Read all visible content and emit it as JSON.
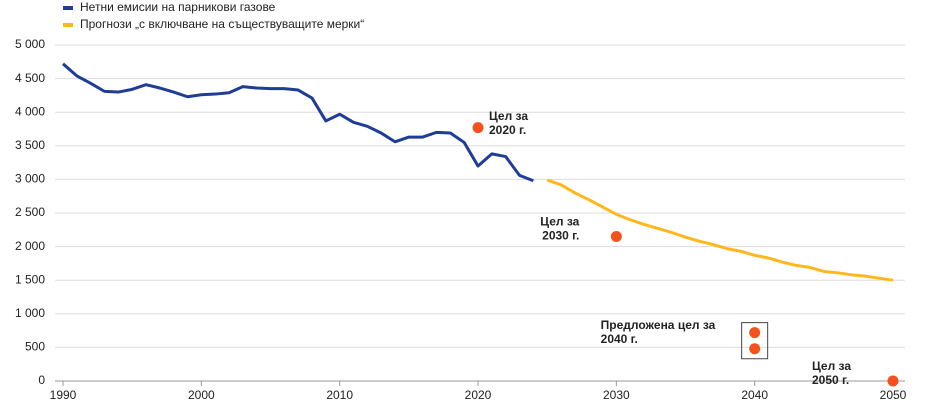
{
  "chart_data": {
    "type": "line",
    "x": [
      1990,
      1991,
      1992,
      1993,
      1994,
      1995,
      1996,
      1997,
      1998,
      1999,
      2000,
      2001,
      2002,
      2003,
      2004,
      2005,
      2006,
      2007,
      2008,
      2009,
      2010,
      2011,
      2012,
      2013,
      2014,
      2015,
      2016,
      2017,
      2018,
      2019,
      2020,
      2021,
      2022,
      2023,
      2024,
      2025,
      2026,
      2027,
      2028,
      2029,
      2030,
      2031,
      2032,
      2033,
      2034,
      2035,
      2036,
      2037,
      2038,
      2039,
      2040,
      2041,
      2042,
      2043,
      2044,
      2045,
      2046,
      2047,
      2048,
      2049,
      2050
    ],
    "series": [
      {
        "name": "Нетни емисии на парникови газове",
        "color": "#1f3c98",
        "values": [
          4720,
          4540,
          4430,
          4310,
          4300,
          4340,
          4410,
          4360,
          4300,
          4230,
          4260,
          4270,
          4290,
          4380,
          4360,
          4350,
          4350,
          4330,
          4210,
          3870,
          3970,
          3850,
          3790,
          3690,
          3560,
          3630,
          3630,
          3700,
          3690,
          3550,
          3200,
          3380,
          3340,
          3060,
          2980,
          null,
          null,
          null,
          null,
          null,
          null,
          null,
          null,
          null,
          null,
          null,
          null,
          null,
          null,
          null,
          null,
          null,
          null,
          null,
          null,
          null,
          null,
          null,
          null,
          null,
          null
        ]
      },
      {
        "name": "Прогнози „с включване на съществуващите мерки“",
        "color": "#ffb81c",
        "values": [
          null,
          null,
          null,
          null,
          null,
          null,
          null,
          null,
          null,
          null,
          null,
          null,
          null,
          null,
          null,
          null,
          null,
          null,
          null,
          null,
          null,
          null,
          null,
          null,
          null,
          null,
          null,
          null,
          null,
          null,
          null,
          null,
          null,
          null,
          null,
          2990,
          2920,
          2800,
          2700,
          2590,
          2480,
          2400,
          2330,
          2270,
          2210,
          2140,
          2080,
          2030,
          1970,
          1930,
          1870,
          1830,
          1770,
          1720,
          1690,
          1630,
          1610,
          1580,
          1560,
          1530,
          1500
        ]
      }
    ],
    "targets": [
      {
        "label": [
          "Цел за",
          "2020 г."
        ],
        "x": 2020,
        "y": [
          3770
        ]
      },
      {
        "label": [
          "Цел за",
          "2030 г."
        ],
        "x": 2030,
        "y": [
          2150
        ]
      },
      {
        "label": [
          "Предложена цел за",
          "2040 г."
        ],
        "x": 2040,
        "y": [
          720,
          480
        ]
      },
      {
        "label": [
          "Цел за",
          "2050 г."
        ],
        "x": 2050,
        "y": [
          0
        ]
      }
    ],
    "target_color": "#f4511e",
    "xlim": [
      1990,
      2050
    ],
    "xticks": [
      1990,
      2000,
      2010,
      2020,
      2030,
      2040,
      2050
    ],
    "ylim": [
      0,
      5000
    ],
    "yticks": [
      0,
      500,
      {
        "value": 1000,
        "label": "1 000"
      },
      {
        "value": 1500,
        "label": "1 500"
      },
      {
        "value": 2000,
        "label": "2 000"
      },
      {
        "value": 2500,
        "label": "2 500"
      },
      {
        "value": 3000,
        "label": "3 000"
      },
      {
        "value": 3500,
        "label": "3 500"
      },
      {
        "value": 4000,
        "label": "4 000"
      },
      {
        "value": 4500,
        "label": "4 500"
      },
      {
        "value": 5000,
        "label": "5 000"
      }
    ],
    "grid": true,
    "legend": "top-left"
  }
}
